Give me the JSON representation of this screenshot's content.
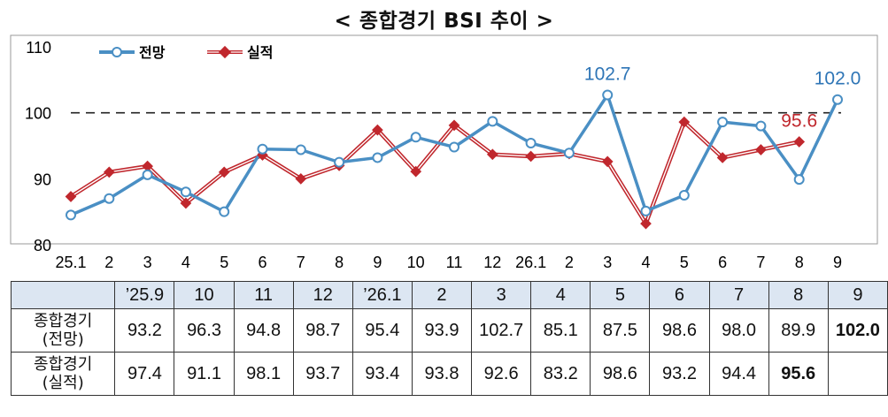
{
  "title": "< 종합경기 BSI 추이 >",
  "chart_data": {
    "type": "line",
    "categories": [
      "25.1",
      "2",
      "3",
      "4",
      "5",
      "6",
      "7",
      "8",
      "9",
      "10",
      "11",
      "12",
      "26.1",
      "2",
      "3",
      "4",
      "5",
      "6",
      "7",
      "8",
      "9"
    ],
    "ylim": [
      80,
      110
    ],
    "yticks": [
      "80",
      "90",
      "100",
      "110"
    ],
    "reference_line": 100,
    "legend_position": "top-left",
    "series": [
      {
        "name": "전망",
        "color": "#4a8fc4",
        "values": [
          84.5,
          87.0,
          90.6,
          88.0,
          85.0,
          94.5,
          94.4,
          92.5,
          93.2,
          96.3,
          94.8,
          98.7,
          95.4,
          93.9,
          102.7,
          85.1,
          87.5,
          98.6,
          98.0,
          89.9,
          102.0
        ]
      },
      {
        "name": "실적",
        "color": "#c0272d",
        "values": [
          87.3,
          91.0,
          91.9,
          86.3,
          91.0,
          93.6,
          90.0,
          92.0,
          97.4,
          91.1,
          98.1,
          93.7,
          93.4,
          93.8,
          92.6,
          83.2,
          98.6,
          93.2,
          94.4,
          95.6,
          null
        ]
      }
    ],
    "callouts": [
      {
        "series": 0,
        "index": 14,
        "text": "102.7",
        "color": "#2e75b6"
      },
      {
        "series": 0,
        "index": 20,
        "text": "102.0",
        "color": "#2e75b6"
      },
      {
        "series": 1,
        "index": 19,
        "text": "95.6",
        "color": "#c0272d"
      }
    ]
  },
  "table": {
    "columns": [
      "’25.9",
      "10",
      "11",
      "12",
      "’26.1",
      "2",
      "3",
      "4",
      "5",
      "6",
      "7",
      "8",
      "9"
    ],
    "rows": [
      {
        "label_line1": "종합경기",
        "label_line2": "(전망)",
        "values": [
          "93.2",
          "96.3",
          "94.8",
          "98.7",
          "95.4",
          "93.9",
          "102.7",
          "85.1",
          "87.5",
          "98.6",
          "98.0",
          "89.9",
          "102.0"
        ]
      },
      {
        "label_line1": "종합경기",
        "label_line2": "(실적)",
        "values": [
          "97.4",
          "91.1",
          "98.1",
          "93.7",
          "93.4",
          "93.8",
          "92.6",
          "83.2",
          "98.6",
          "93.2",
          "94.4",
          "95.6",
          ""
        ]
      }
    ]
  }
}
